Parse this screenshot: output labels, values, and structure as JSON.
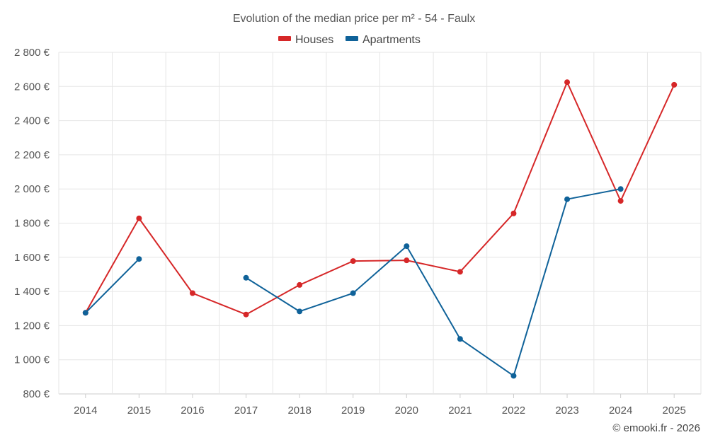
{
  "chart_data": {
    "type": "line",
    "title": "Evolution of the median price per m² - 54 - Faulx",
    "categories": [
      "2014",
      "2015",
      "2016",
      "2017",
      "2018",
      "2019",
      "2020",
      "2021",
      "2022",
      "2023",
      "2024",
      "2025"
    ],
    "series": [
      {
        "name": "Houses",
        "color": "#d62728",
        "values": [
          1275,
          1828,
          1390,
          1265,
          1438,
          1578,
          1582,
          1515,
          1857,
          2625,
          1930,
          2610
        ]
      },
      {
        "name": "Apartments",
        "color": "#0f6299",
        "values": [
          1275,
          1590,
          null,
          1480,
          1283,
          1390,
          1665,
          1122,
          906,
          1940,
          2000,
          null
        ]
      }
    ],
    "ylim": [
      800,
      2800
    ],
    "yticks": [
      800,
      1000,
      1200,
      1400,
      1600,
      1800,
      2000,
      2200,
      2400,
      2600,
      2800
    ],
    "ytick_labels": [
      "800 €",
      "1 000 €",
      "1 200 €",
      "1 400 €",
      "1 600 €",
      "1 800 €",
      "2 000 €",
      "2 200 €",
      "2 400 €",
      "2 600 €",
      "2 800 €"
    ],
    "xlabel": "",
    "ylabel": "",
    "grid": true,
    "legend_position": "top-center"
  },
  "credit": "© emooki.fr - 2026"
}
